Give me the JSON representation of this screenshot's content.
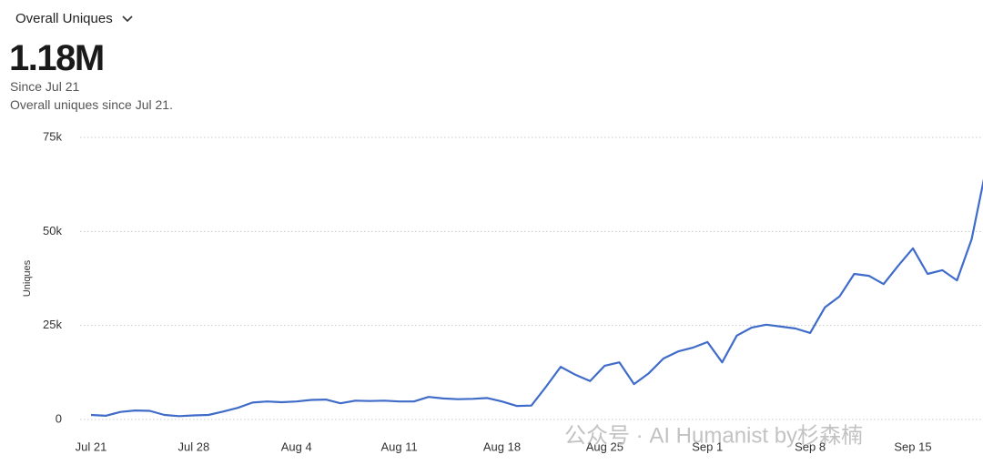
{
  "header": {
    "selector": "Overall Uniques",
    "metric": "1.18M",
    "since": "Since Jul 21",
    "description": "Overall uniques since Jul 21."
  },
  "watermark": "公众号 · AI Humanist by杉森楠",
  "chart_data": {
    "type": "line",
    "ylabel": "Uniques",
    "categories": [
      "Jul 21",
      null,
      null,
      null,
      null,
      null,
      null,
      "Jul 28",
      null,
      null,
      null,
      null,
      null,
      null,
      "Aug 4",
      null,
      null,
      null,
      null,
      null,
      null,
      "Aug 11",
      null,
      null,
      null,
      null,
      null,
      null,
      "Aug 18",
      null,
      null,
      null,
      null,
      null,
      null,
      "Aug 25",
      null,
      null,
      null,
      null,
      null,
      null,
      "Sep 1",
      null,
      null,
      null,
      null,
      null,
      null,
      "Sep 8",
      null,
      null,
      null,
      null,
      null,
      null,
      "Sep 15",
      null,
      null,
      null,
      null,
      null
    ],
    "series": [
      {
        "name": "Uniques",
        "color": "#3f6cc9",
        "values": [
          1200,
          1000,
          2000,
          2400,
          2300,
          1200,
          900,
          1100,
          1200,
          2100,
          3100,
          4500,
          4800,
          4600,
          4800,
          5200,
          5300,
          4300,
          5000,
          4900,
          5000,
          4800,
          4800,
          6000,
          5600,
          5400,
          5500,
          5700,
          4800,
          3600,
          3700,
          8700,
          14000,
          11900,
          10200,
          14300,
          15200,
          9400,
          12300,
          16200,
          18100,
          19100,
          20600,
          15200,
          22300,
          24400,
          25200,
          24700,
          24200,
          23000,
          29800,
          32700,
          38700,
          38200,
          36000,
          40900,
          45500,
          38700,
          39700,
          37000,
          47900,
          67000
        ]
      }
    ],
    "ylim": [
      0,
      75000
    ],
    "yticks": [
      0,
      {
        "value": 25000,
        "label": "25k"
      },
      {
        "value": 50000,
        "label": "50k"
      },
      {
        "value": 75000,
        "label": "75k"
      }
    ],
    "grid": true
  }
}
